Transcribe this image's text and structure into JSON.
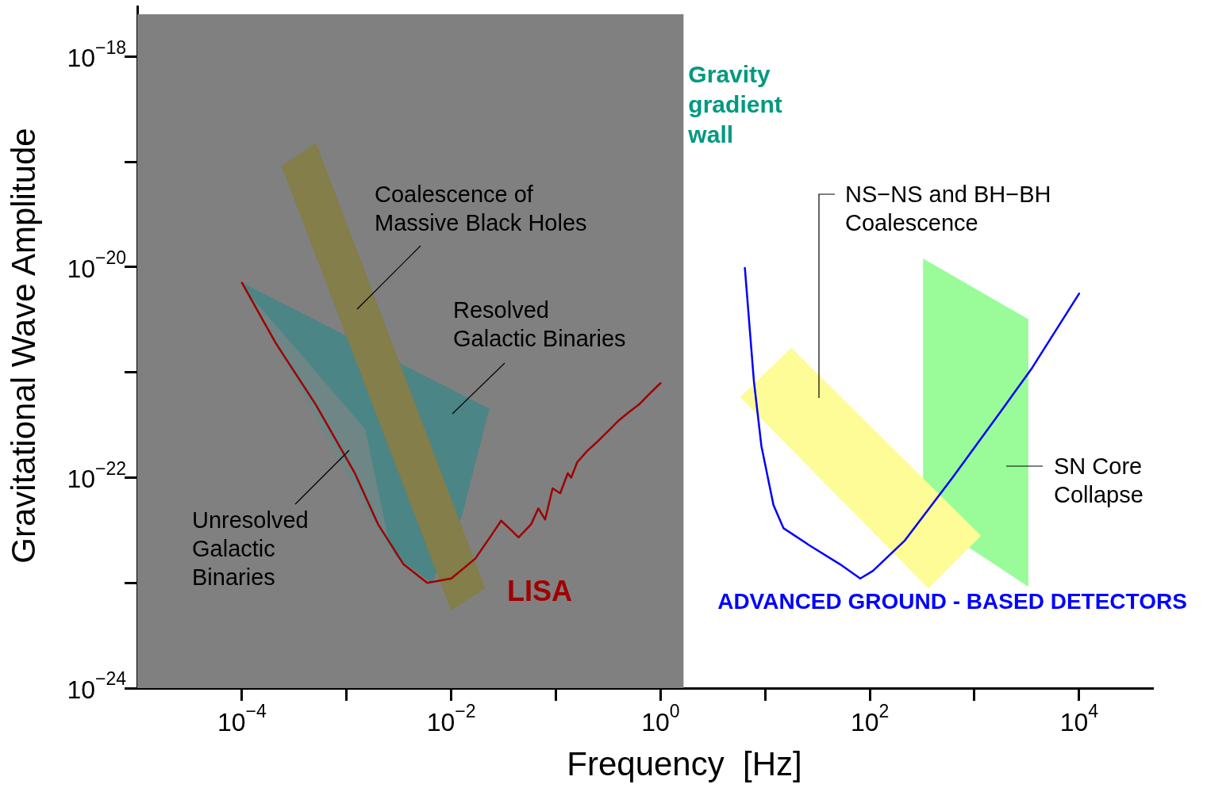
{
  "chart_data": {
    "type": "line",
    "xlabel": "Frequency  [Hz]",
    "ylabel": "Gravitational Wave Amplitude",
    "log": "xy",
    "grid": false,
    "legend": false,
    "marker": "none",
    "line_style": "solid",
    "xlim": [
      1e-05,
      50000.0
    ],
    "ylim": [
      1e-24,
      3e-18
    ],
    "xticks": [
      {
        "value": 0.0001,
        "label": "10$^{−4}$"
      },
      {
        "value": 0.001,
        "label": null
      },
      {
        "value": 0.01,
        "label": "10$^{−2}$"
      },
      {
        "value": 0.1,
        "label": null
      },
      {
        "value": 1,
        "label": "10$^{0}$"
      },
      {
        "value": 10,
        "label": null
      },
      {
        "value": 100,
        "label": "10$^{2}$"
      },
      {
        "value": 1000,
        "label": null
      },
      {
        "value": 10000,
        "label": "10$^{4}$"
      }
    ],
    "yticks": [
      {
        "value": 1e-24,
        "label": "10$^{−24}$"
      },
      {
        "value": 1e-23,
        "label": null
      },
      {
        "value": 1e-22,
        "label": "10$^{−22}$"
      },
      {
        "value": 1e-21,
        "label": null
      },
      {
        "value": 1e-20,
        "label": "10$^{−20}$"
      },
      {
        "value": 1e-19,
        "label": null
      },
      {
        "value": 1e-18,
        "label": "10$^{−18}$"
      }
    ],
    "bands": [
      {
        "axis": "x",
        "from": 1e-05,
        "to": 1.66,
        "label": "Gravity\ngradient\nwall",
        "color": "#808080"
      }
    ],
    "series": [
      {
        "type": "area",
        "color": "#4c8585",
        "x": [
          0.0001,
          0.023,
          0.0126,
          0.0065,
          0.00295,
          0.0012,
          0.0001
        ],
        "values": [
          7.1e-21,
          4.5e-22,
          4.3e-23,
          1e-23,
          1.8e-23,
          1.1e-22,
          7.1e-21
        ]
      },
      {
        "type": "area",
        "color": "#6e8686",
        "x": [
          0.000115,
          0.0015,
          0.0027,
          0.0017,
          0.00072,
          0.000115
        ],
        "values": [
          5.6e-21,
          2.9e-22,
          1.8e-23,
          4.3e-23,
          2e-22,
          5.6e-21
        ]
      },
      {
        "type": "area",
        "color": "#837e4a",
        "x": [
          0.00024,
          0.00051,
          0.021,
          0.01,
          0.00024
        ],
        "values": [
          9.1e-20,
          1.5e-19,
          8.9e-24,
          5.5e-24,
          9.1e-20
        ]
      },
      {
        "type": "area",
        "color": "#99fc99",
        "x": [
          324,
          3240,
          3240,
          324,
          324
        ],
        "values": [
          1.2e-20,
          3.2e-21,
          9.3e-24,
          4.2e-23,
          1.2e-20
        ]
      },
      {
        "type": "area",
        "color": "#fdfc96",
        "x": [
          5.8,
          17.8,
          1150,
          363,
          5.8
        ],
        "values": [
          5.8e-22,
          1.7e-21,
          2.8e-23,
          8.9e-24,
          5.8e-22
        ]
      },
      {
        "color": "#a00000",
        "x": [
          0.0001,
          0.00021,
          0.00051,
          0.0012,
          0.002,
          0.0035,
          0.0059,
          0.01,
          0.017,
          0.024,
          0.03,
          0.037,
          0.044,
          0.058,
          0.068,
          0.079,
          0.093,
          0.11,
          0.13,
          0.14,
          0.16,
          0.2,
          0.25,
          0.32,
          0.4,
          0.5,
          0.63,
          0.79,
          1
        ],
        "values": [
          7.1e-21,
          1.9e-21,
          4.9e-22,
          1.1e-22,
          3.6e-23,
          1.5e-23,
          1e-23,
          1.1e-23,
          1.7e-23,
          2.8e-23,
          3.9e-23,
          3.2e-23,
          2.7e-23,
          3.6e-23,
          5.1e-23,
          4e-23,
          7.9e-23,
          7.1e-23,
          1.1e-22,
          1e-22,
          1.4e-22,
          1.8e-22,
          2.2e-22,
          2.8e-22,
          3.5e-22,
          4.2e-22,
          5e-22,
          6.3e-22,
          7.9e-22
        ]
      },
      {
        "color": "#0000ff",
        "x": [
          6.4,
          7.8,
          9.2,
          12,
          15,
          26,
          52,
          81,
          107,
          214,
          617,
          1740,
          3550,
          10000
        ],
        "values": [
          9.8e-21,
          8.3e-22,
          2e-22,
          5.5e-23,
          3.3e-23,
          2.3e-23,
          1.5e-23,
          1.1e-23,
          1.3e-23,
          2.5e-23,
          1e-22,
          4.1e-22,
          1.1e-21,
          5.6e-21
        ]
      }
    ],
    "annotations": [
      "Coalescence of\nMassive Black Holes",
      "Resolved\nGalactic Binaries",
      "Unresolved\nGalactic\nBinaries",
      "NS−NS and BH−BH\nCoalescence",
      "SN Core\nCollapse",
      "LISA",
      "ADVANCED GROUND - BASED DETECTORS"
    ]
  }
}
